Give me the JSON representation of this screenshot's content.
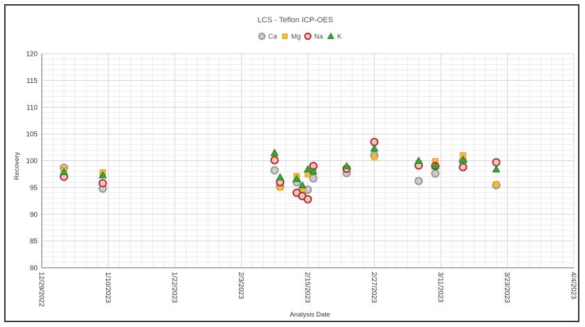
{
  "chart_data": {
    "type": "scatter",
    "title": "LCS - Teflon ICP-OES",
    "xlabel": "Analysis Date",
    "ylabel": "Recovery",
    "ylim": [
      80,
      120
    ],
    "yticks": [
      80,
      85,
      90,
      95,
      100,
      105,
      110,
      115,
      120
    ],
    "xlim": [
      "2022-12-29",
      "2023-04-04"
    ],
    "xticks": [
      "12/29/2022",
      "1/10/2023",
      "1/22/2023",
      "2/3/2023",
      "2/15/2023",
      "2/27/2023",
      "3/11/2023",
      "3/23/2023",
      "4/4/2023"
    ],
    "grid": true,
    "legend_position": "top-center",
    "series": [
      {
        "name": "Ca",
        "marker": "circle",
        "fill": "#cccccc",
        "stroke": "#999999",
        "points": [
          {
            "x": "2023-01-02",
            "y": 98.7
          },
          {
            "x": "2023-01-09",
            "y": 94.8
          },
          {
            "x": "2023-02-09",
            "y": 98.2
          },
          {
            "x": "2023-02-10",
            "y": 95.2
          },
          {
            "x": "2023-02-13",
            "y": 96.0
          },
          {
            "x": "2023-02-14",
            "y": 94.2
          },
          {
            "x": "2023-02-15",
            "y": 94.6
          },
          {
            "x": "2023-02-16",
            "y": 96.7
          },
          {
            "x": "2023-02-22",
            "y": 97.7
          },
          {
            "x": "2023-02-27",
            "y": 101.0
          },
          {
            "x": "2023-03-07",
            "y": 96.2
          },
          {
            "x": "2023-03-10",
            "y": 97.6
          },
          {
            "x": "2023-03-15",
            "y": 99.9
          },
          {
            "x": "2023-03-21",
            "y": 95.4
          }
        ]
      },
      {
        "name": "Mg",
        "marker": "square",
        "fill": "#f5b942",
        "stroke": "#e09a1a",
        "points": [
          {
            "x": "2023-01-02",
            "y": 98.3
          },
          {
            "x": "2023-01-09",
            "y": 97.8
          },
          {
            "x": "2023-02-09",
            "y": 100.7
          },
          {
            "x": "2023-02-10",
            "y": 95.0
          },
          {
            "x": "2023-02-13",
            "y": 97.1
          },
          {
            "x": "2023-02-14",
            "y": 94.4
          },
          {
            "x": "2023-02-15",
            "y": 97.5
          },
          {
            "x": "2023-02-16",
            "y": 98.5
          },
          {
            "x": "2023-02-22",
            "y": 98.4
          },
          {
            "x": "2023-02-27",
            "y": 100.7
          },
          {
            "x": "2023-03-07",
            "y": 99.5
          },
          {
            "x": "2023-03-10",
            "y": 99.9
          },
          {
            "x": "2023-03-15",
            "y": 101.0
          },
          {
            "x": "2023-03-21",
            "y": 95.6
          }
        ]
      },
      {
        "name": "Na",
        "marker": "circle",
        "fill": "#f2c4c4",
        "stroke": "#b03030",
        "points": [
          {
            "x": "2023-01-02",
            "y": 97.0
          },
          {
            "x": "2023-01-09",
            "y": 95.8
          },
          {
            "x": "2023-02-09",
            "y": 100.1
          },
          {
            "x": "2023-02-10",
            "y": 96.0
          },
          {
            "x": "2023-02-13",
            "y": 94.0
          },
          {
            "x": "2023-02-14",
            "y": 93.4
          },
          {
            "x": "2023-02-15",
            "y": 92.8
          },
          {
            "x": "2023-02-16",
            "y": 99.0
          },
          {
            "x": "2023-02-22",
            "y": 98.5
          },
          {
            "x": "2023-02-27",
            "y": 103.5
          },
          {
            "x": "2023-03-07",
            "y": 99.1
          },
          {
            "x": "2023-03-10",
            "y": 99.0
          },
          {
            "x": "2023-03-15",
            "y": 98.8
          },
          {
            "x": "2023-03-21",
            "y": 99.7
          }
        ]
      },
      {
        "name": "K",
        "marker": "triangle",
        "fill": "#33aa33",
        "stroke": "#1f7a1f",
        "points": [
          {
            "x": "2023-01-02",
            "y": 97.9
          },
          {
            "x": "2023-01-09",
            "y": 97.3
          },
          {
            "x": "2023-02-09",
            "y": 101.5
          },
          {
            "x": "2023-02-10",
            "y": 96.9
          },
          {
            "x": "2023-02-13",
            "y": 96.6
          },
          {
            "x": "2023-02-14",
            "y": 95.4
          },
          {
            "x": "2023-02-15",
            "y": 98.4
          },
          {
            "x": "2023-02-16",
            "y": 98.0
          },
          {
            "x": "2023-02-22",
            "y": 99.0
          },
          {
            "x": "2023-02-27",
            "y": 102.3
          },
          {
            "x": "2023-03-07",
            "y": 100.0
          },
          {
            "x": "2023-03-10",
            "y": 99.0
          },
          {
            "x": "2023-03-15",
            "y": 100.2
          },
          {
            "x": "2023-03-21",
            "y": 98.4
          }
        ]
      }
    ]
  }
}
